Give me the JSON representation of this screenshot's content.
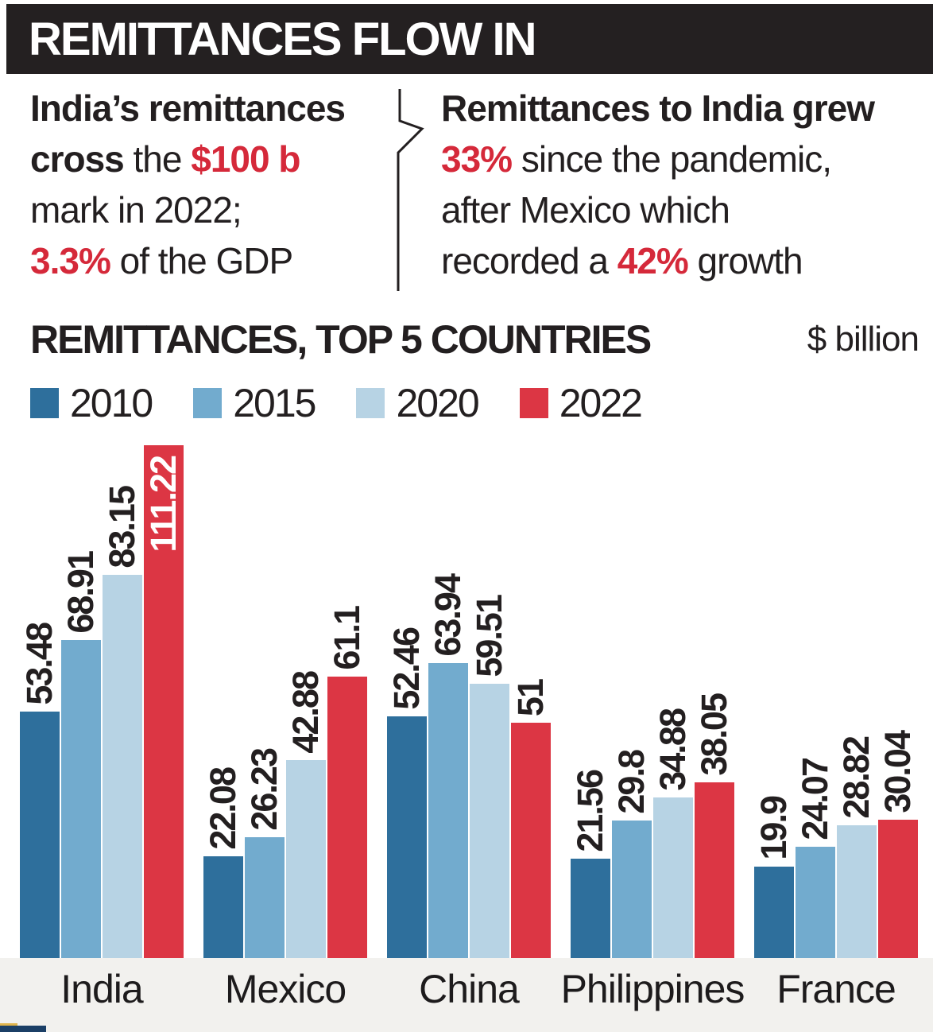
{
  "header": {
    "title": "REMITTANCES FLOW IN"
  },
  "intro": {
    "left_lines": [
      [
        {
          "t": "India’s remittances",
          "s": "b"
        }
      ],
      [
        {
          "t": "cross",
          "s": "b"
        },
        {
          "t": " the ",
          "s": "n"
        },
        {
          "t": "$100 b",
          "s": "br"
        }
      ],
      [
        {
          "t": "mark in 2022;",
          "s": "n"
        }
      ],
      [
        {
          "t": "3.3%",
          "s": "br"
        },
        {
          "t": " of the GDP",
          "s": "n"
        }
      ]
    ],
    "right_lines": [
      [
        {
          "t": "Remittances to India grew",
          "s": "b"
        }
      ],
      [
        {
          "t": "33%",
          "s": "br"
        },
        {
          "t": " since the pandemic,",
          "s": "n"
        }
      ],
      [
        {
          "t": "after Mexico which",
          "s": "n"
        }
      ],
      [
        {
          "t": "recorded a ",
          "s": "n"
        },
        {
          "t": "42%",
          "s": "br"
        },
        {
          "t": " growth",
          "s": "n"
        }
      ]
    ]
  },
  "section": {
    "title": "REMITTANCES, TOP 5 COUNTRIES",
    "unit": "$ billion"
  },
  "colors": {
    "banner": "#242021",
    "accent_red_text": "#d5293a",
    "y2010": "#2e6f9c",
    "y2015": "#72abce",
    "y2020": "#b7d3e4",
    "y2022": "#dc3644",
    "footer_band": "#f2f1ee"
  },
  "chart_data": {
    "type": "bar",
    "title": "REMITTANCES, TOP 5 COUNTRIES",
    "ylabel": "$ billion",
    "xlabel": "",
    "grid": false,
    "legend_position": "top-left",
    "ylim": [
      0,
      112
    ],
    "categories": [
      "India",
      "Mexico",
      "China",
      "Philippines",
      "France"
    ],
    "series": [
      {
        "name": "2010",
        "color_key": "y2010",
        "values": [
          53.48,
          22.08,
          52.46,
          21.56,
          19.9
        ]
      },
      {
        "name": "2015",
        "color_key": "y2015",
        "values": [
          68.91,
          26.23,
          63.94,
          29.8,
          24.07
        ]
      },
      {
        "name": "2020",
        "color_key": "y2020",
        "values": [
          83.15,
          42.88,
          59.51,
          34.88,
          28.82
        ]
      },
      {
        "name": "2022",
        "color_key": "y2022",
        "values": [
          111.22,
          61.1,
          51,
          38.05,
          30.04
        ]
      }
    ]
  }
}
